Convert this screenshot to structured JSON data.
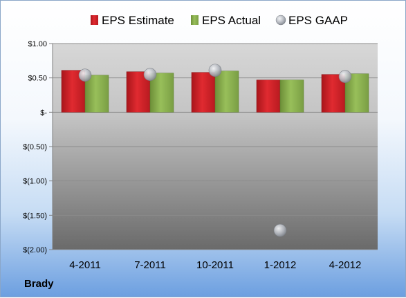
{
  "company": "Brady",
  "colors": {
    "estimate": "#d42026",
    "actual": "#8bb050",
    "gaap": "#b9bdc4"
  },
  "chart_data": {
    "type": "bar",
    "categories": [
      "4-2011",
      "7-2011",
      "10-2011",
      "1-2012",
      "4-2012"
    ],
    "series": [
      {
        "name": "EPS Estimate",
        "kind": "bar",
        "values": [
          0.61,
          0.59,
          0.58,
          0.47,
          0.55
        ]
      },
      {
        "name": "EPS Actual",
        "kind": "bar",
        "values": [
          0.54,
          0.57,
          0.6,
          0.47,
          0.56
        ]
      },
      {
        "name": "EPS GAAP",
        "kind": "scatter",
        "values": [
          0.54,
          0.55,
          0.61,
          -1.72,
          0.52
        ]
      }
    ],
    "yticks": [
      1.0,
      0.5,
      0,
      -0.5,
      -1.0,
      -1.5,
      -2.0
    ],
    "ytick_labels": [
      "$1.00",
      "$0.50",
      "$-",
      "$(0.50)",
      "$(1.00)",
      "$(1.50)",
      "$(2.00)"
    ],
    "ylim": [
      -2.0,
      1.0
    ],
    "grid": true,
    "legend_position": "top"
  }
}
